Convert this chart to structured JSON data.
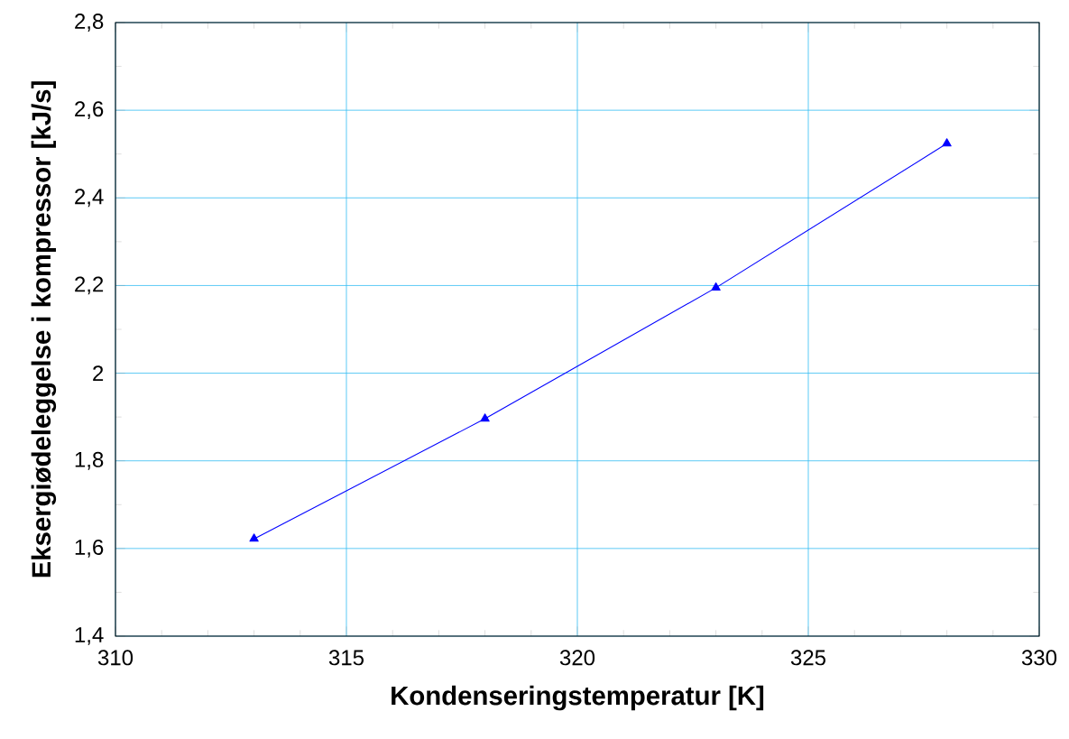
{
  "chart_data": {
    "type": "line",
    "xlabel": "Kondenseringstemperatur  [K]",
    "ylabel": "Eksergiødeleggelse i kompressor  [kJ/s]",
    "x": [
      313,
      318,
      323,
      328
    ],
    "series": [
      {
        "color": "#0000ff",
        "values": [
          1.622,
          1.896,
          2.195,
          2.524
        ]
      }
    ],
    "xlim": [
      310,
      330
    ],
    "xticks": [
      310,
      315,
      320,
      325,
      330
    ],
    "ylim": [
      1.4,
      2.8
    ],
    "yticks": [
      {
        "value": 1.4,
        "label": "1,4"
      },
      {
        "value": 1.6,
        "label": "1,6"
      },
      {
        "value": 1.8,
        "label": "1,8"
      },
      2,
      {
        "value": 2.2,
        "label": "2,2"
      },
      {
        "value": 2.4,
        "label": "2,4"
      },
      {
        "value": 2.6,
        "label": "2,6"
      },
      {
        "value": 2.8,
        "label": "2,8"
      }
    ],
    "grid": true,
    "marker": "triangle",
    "line_style": "solid"
  }
}
